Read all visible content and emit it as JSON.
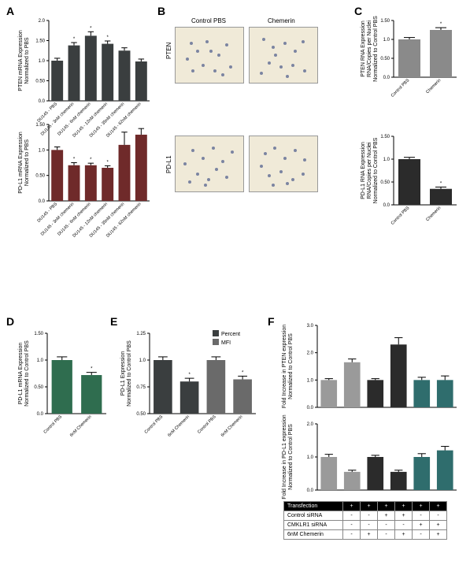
{
  "labels": {
    "A": "A",
    "B": "B",
    "C": "C",
    "D": "D",
    "E": "E",
    "F": "F"
  },
  "A_top": {
    "ylabel": "PTEN mRNA Expression\nNormalized to PBS",
    "ylim": [
      0,
      2.0
    ],
    "yticks": [
      0,
      0.5,
      1.0,
      1.5,
      2.0
    ],
    "cats": [
      "DU145 - PBS",
      "DU145 - 3nM chemerin",
      "DU145 - 6nM chemerin",
      "DU145 - 12nM chemerin",
      "DU145 - 35nM chemerin",
      "DU145 - 62nM chemerin"
    ],
    "vals": [
      1.0,
      1.38,
      1.62,
      1.42,
      1.25,
      0.98
    ],
    "err": [
      0.06,
      0.07,
      0.1,
      0.07,
      0.07,
      0.06
    ],
    "sig": [
      false,
      true,
      true,
      true,
      false,
      false
    ],
    "color": "#3a3e3f"
  },
  "A_bot": {
    "ylabel": "PD-L1 mRNA Expression\nNormalized to PBS",
    "ylim": [
      0,
      1.5
    ],
    "yticks": [
      0,
      0.5,
      1.0,
      1.5
    ],
    "cats": [
      "DU145 - PBS",
      "DU145 - 3nM chemerin",
      "DU145 - 6nM chemerin",
      "DU145 - 12nM chemerin",
      "DU145 - 35nM chemerin",
      "DU145 - 62nM chemerin"
    ],
    "vals": [
      1.0,
      0.7,
      0.7,
      0.65,
      1.1,
      1.3
    ],
    "err": [
      0.06,
      0.05,
      0.04,
      0.04,
      0.25,
      0.12
    ],
    "sig": [
      false,
      true,
      true,
      true,
      false,
      false
    ],
    "color": "#6f2a2a"
  },
  "B": {
    "col_left": "Control PBS",
    "col_right": "Chemerin",
    "row_top": "PTEN",
    "row_bot": "PD-L1"
  },
  "C_top": {
    "ylabel": "PTEN RNA Expression\nRNA/Copies per Nuclei\nNormalized to Control PBS",
    "ylim": [
      0,
      1.5
    ],
    "yticks": [
      0,
      0.5,
      1.0,
      1.5
    ],
    "cats": [
      "Control PBS",
      "Chemerin"
    ],
    "vals": [
      1.0,
      1.25
    ],
    "err": [
      0.05,
      0.06
    ],
    "sig": [
      false,
      true
    ],
    "color": "#8a8a8a"
  },
  "C_bot": {
    "ylabel": "PD-L1 RNA Expression\nRNA/Copies per Nuclei\nNormalized to Control PBS",
    "ylim": [
      0,
      1.5
    ],
    "yticks": [
      0,
      0.5,
      1.0,
      1.5
    ],
    "cats": [
      "Control PBS",
      "Chemerin"
    ],
    "vals": [
      1.0,
      0.35
    ],
    "err": [
      0.04,
      0.04
    ],
    "sig": [
      false,
      true
    ],
    "color": "#2b2b2b"
  },
  "D": {
    "ylabel": "PD-L1 mRNA Expression\nNormalized to Control PBS",
    "ylim": [
      0,
      1.5
    ],
    "yticks": [
      0,
      0.5,
      1.0,
      1.5
    ],
    "cats": [
      "Control PBS",
      "6nM Chemerin"
    ],
    "vals": [
      1.0,
      0.72
    ],
    "err": [
      0.06,
      0.05
    ],
    "sig": [
      false,
      true
    ],
    "color": "#2f6d4f"
  },
  "E": {
    "ylabel": "PD-L1 Expression\nNormalized to Control PBS",
    "ylim": [
      0.5,
      1.25
    ],
    "yticks": [
      0.5,
      0.75,
      1.0,
      1.25
    ],
    "cats": [
      "Control PBS",
      "6nM Chemerin",
      "Control PBS",
      "6nM Chemerin"
    ],
    "vals": [
      1.0,
      0.8,
      1.0,
      0.82
    ],
    "err": [
      0.03,
      0.03,
      0.03,
      0.03
    ],
    "sig": [
      false,
      true,
      false,
      true
    ],
    "colors": [
      "#3a3e3f",
      "#3a3e3f",
      "#6a6a6a",
      "#6a6a6a"
    ],
    "legend": [
      "Percent",
      "MFI"
    ]
  },
  "F_top": {
    "ylabel": "Fold Increase in PTEN expression\nNormalized to Control PBS",
    "ylim": [
      0,
      3
    ],
    "yticks": [
      0,
      1,
      2,
      3
    ],
    "vals": [
      1.0,
      1.65,
      1.0,
      2.3,
      1.0,
      1.0
    ],
    "err": [
      0.05,
      0.12,
      0.05,
      0.25,
      0.1,
      0.15
    ],
    "colors": [
      "#9a9a9a",
      "#9a9a9a",
      "#2b2b2b",
      "#2b2b2b",
      "#2f6d6d",
      "#2f6d6d"
    ]
  },
  "F_bot": {
    "ylabel": "Fold Increase in PD-L1 expression\nNormalized to Control PBS",
    "ylim": [
      0,
      2
    ],
    "yticks": [
      0,
      1,
      2
    ],
    "vals": [
      1.0,
      0.55,
      1.0,
      0.55,
      1.0,
      1.2
    ],
    "err": [
      0.08,
      0.05,
      0.05,
      0.05,
      0.1,
      0.12
    ],
    "colors": [
      "#9a9a9a",
      "#9a9a9a",
      "#2b2b2b",
      "#2b2b2b",
      "#2f6d6d",
      "#2f6d6d"
    ]
  },
  "F_table": {
    "rows": [
      "Transfection",
      "Control siRNA",
      "CMKLR1 siRNA",
      "6nM Chemerin"
    ],
    "matrix": [
      [
        "+",
        "+",
        "+",
        "+",
        "+",
        "+"
      ],
      [
        "-",
        "-",
        "+",
        "+",
        "-",
        "-"
      ],
      [
        "-",
        "-",
        "-",
        "-",
        "+",
        "+"
      ],
      [
        "-",
        "+",
        "-",
        "+",
        "-",
        "+"
      ]
    ]
  }
}
